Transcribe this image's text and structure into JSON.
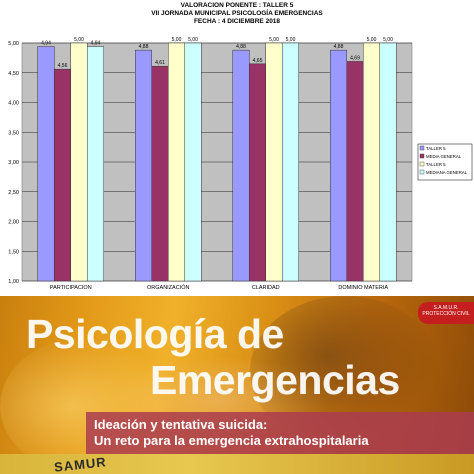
{
  "chart_data": {
    "type": "bar",
    "title": "VALORACION PONENTE : TALLER 5",
    "subtitle_lines": [
      "VII JORNADA MUNICIPAL PSICOLOGÍA EMERGENCIAS",
      "FECHA : 4 DICIEMBRE 2018"
    ],
    "categories": [
      "PARTICIPACION",
      "ORGANIZACIÓN",
      "CLARIDAD",
      "DOMINIO MATERIA"
    ],
    "series": [
      {
        "name": "TALLER 5",
        "color": "#9999ff",
        "values": [
          4.94,
          4.88,
          4.88,
          4.88
        ],
        "labels": [
          "4,94",
          "4,88",
          "4,88",
          "4,88"
        ]
      },
      {
        "name": "MEDIA GENERAL",
        "color": "#993366",
        "values": [
          4.56,
          4.61,
          4.65,
          4.69
        ],
        "labels": [
          "4,56",
          "4,61",
          "4,65",
          "4,69"
        ]
      },
      {
        "name": "TALLER 5",
        "color": "#ffffcc",
        "values": [
          5.0,
          5.0,
          5.0,
          5.0
        ],
        "labels": [
          "5,00",
          "5,00",
          "5,00",
          "5,00"
        ]
      },
      {
        "name": "MEDIANA GENERAL",
        "color": "#ccffff",
        "values": [
          4.94,
          5.0,
          5.0,
          5.0
        ],
        "labels": [
          "4,94",
          "5,00",
          "5,00",
          "5,00"
        ]
      }
    ],
    "ylim": [
      1.0,
      5.0
    ],
    "yticks": [
      1.0,
      1.5,
      2.0,
      2.5,
      3.0,
      3.5,
      4.0,
      4.5,
      5.0
    ],
    "ytick_labels": [
      "1,00",
      "1,50",
      "2,00",
      "2,50",
      "3,00",
      "3,50",
      "4,00",
      "4,50",
      "5,00"
    ],
    "grid": true,
    "legend_position": "right",
    "plot_background": "#c0c0c0"
  },
  "cover": {
    "title_line_1": "Psicología de",
    "title_line_2": "Emergencias",
    "subtitle_line_1": "Ideación y tentativa suicida:",
    "subtitle_line_2": "Un reto para la emergencia extrahospitalaria",
    "badge_text": "S.A.M.U.R. PROTECCIÓN CIVIL",
    "strip_text": "SAMUR",
    "colors": {
      "accent": "#e39a18",
      "band": "#aa3c50"
    }
  }
}
